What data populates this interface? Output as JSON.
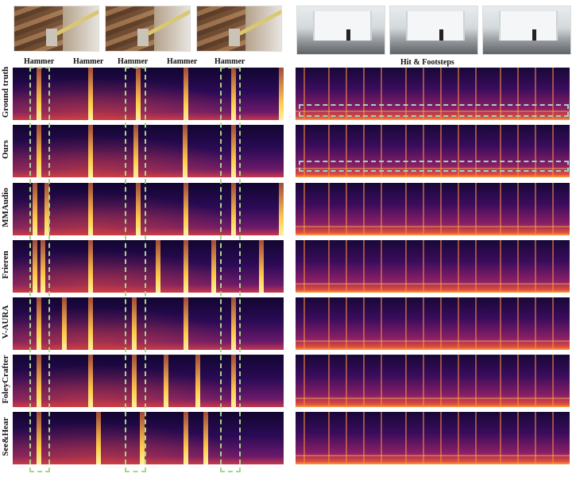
{
  "left_labels": [
    "Hammer",
    "Hammer",
    "Hammer",
    "Hammer",
    "Hammer"
  ],
  "right_label": "Hit & Footsteps",
  "rows": [
    "Ground truth",
    "Ours",
    "MMAudio",
    "Frieren",
    "V-AURA",
    "FoleyCrafter",
    "See&Hear"
  ],
  "colors": {
    "highlight_green": "#a9d58b",
    "highlight_teal": "#9fd3c7"
  }
}
